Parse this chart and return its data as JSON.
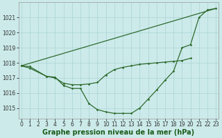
{
  "bg_color": "#cceaea",
  "grid_color": "#aad4d4",
  "text_color": "#333333",
  "xlabel": "Graphe pression niveau de la mer (hPa)",
  "xlabel_color": "#1a5c1a",
  "xlabel_fontsize": 7.0,
  "ylim": [
    1014.3,
    1022.0
  ],
  "xlim": [
    -0.3,
    23.3
  ],
  "yticks": [
    1015,
    1016,
    1017,
    1018,
    1019,
    1020,
    1021
  ],
  "xticks": [
    0,
    1,
    2,
    3,
    4,
    5,
    6,
    7,
    8,
    9,
    10,
    11,
    12,
    13,
    14,
    15,
    16,
    17,
    18,
    19,
    20,
    21,
    22,
    23
  ],
  "tick_fontsize": 5.5,
  "line_color": "#2d6a2d",
  "line1_x": [
    0,
    1,
    3,
    4,
    5,
    6,
    7,
    8,
    9,
    10,
    11,
    12,
    13,
    14,
    15,
    16,
    17,
    18,
    19,
    20,
    21,
    22,
    23
  ],
  "line1_y": [
    1017.8,
    1017.75,
    1017.1,
    1017.05,
    1016.5,
    1016.3,
    1016.3,
    1015.3,
    1014.9,
    1014.75,
    1014.65,
    1014.65,
    1014.65,
    1015.0,
    1015.6,
    1016.2,
    1016.85,
    1017.45,
    1019.0,
    1019.2,
    1021.0,
    1021.5,
    1021.6
  ],
  "line2_x": [
    0,
    1,
    3,
    4,
    5,
    6,
    7,
    8,
    9,
    10,
    11,
    12,
    13,
    14,
    15,
    16,
    17,
    18,
    19,
    20
  ],
  "line2_y": [
    1017.8,
    1017.65,
    1017.1,
    1017.0,
    1016.65,
    1016.55,
    1016.55,
    1016.6,
    1016.7,
    1017.2,
    1017.55,
    1017.7,
    1017.8,
    1017.9,
    1017.95,
    1018.0,
    1018.05,
    1018.1,
    1018.15,
    1018.3
  ],
  "line3_x": [
    0,
    23
  ],
  "line3_y": [
    1017.8,
    1021.6
  ]
}
